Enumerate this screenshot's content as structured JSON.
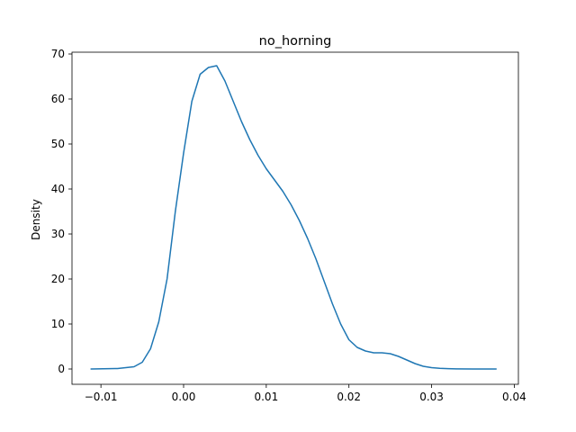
{
  "chart_data": {
    "type": "line",
    "title": "no_horning",
    "xlabel": "",
    "ylabel": "Density",
    "xlim": [
      -0.0135,
      0.0405
    ],
    "ylim": [
      -3.4,
      70.4
    ],
    "grid": false,
    "x_ticks": [
      -0.01,
      0.0,
      0.01,
      0.02,
      0.03,
      0.04
    ],
    "x_tick_labels": [
      "−0.01",
      "0.00",
      "0.01",
      "0.02",
      "0.03",
      "0.04"
    ],
    "y_ticks": [
      0,
      10,
      20,
      30,
      40,
      50,
      60,
      70
    ],
    "y_tick_labels": [
      "0",
      "10",
      "20",
      "30",
      "40",
      "50",
      "60",
      "70"
    ],
    "series": [
      {
        "color": "#1f77b4",
        "x": [
          -0.0112,
          -0.008,
          -0.006,
          -0.005,
          -0.004,
          -0.003,
          -0.002,
          -0.001,
          0.0,
          0.001,
          0.002,
          0.003,
          0.004,
          0.005,
          0.006,
          0.007,
          0.008,
          0.009,
          0.01,
          0.011,
          0.012,
          0.013,
          0.014,
          0.015,
          0.016,
          0.017,
          0.018,
          0.019,
          0.02,
          0.021,
          0.022,
          0.023,
          0.024,
          0.025,
          0.026,
          0.027,
          0.028,
          0.029,
          0.03,
          0.031,
          0.032,
          0.033,
          0.035,
          0.0378
        ],
        "y": [
          0.0,
          0.1,
          0.5,
          1.5,
          4.5,
          10.5,
          20.0,
          35.0,
          48.0,
          59.5,
          65.5,
          67.0,
          67.4,
          64.0,
          59.5,
          55.0,
          51.0,
          47.5,
          44.5,
          42.0,
          39.5,
          36.5,
          33.0,
          29.0,
          24.5,
          19.5,
          14.5,
          10.0,
          6.5,
          4.8,
          4.0,
          3.6,
          3.6,
          3.4,
          2.8,
          2.0,
          1.2,
          0.6,
          0.3,
          0.15,
          0.07,
          0.03,
          0.01,
          0.0
        ]
      }
    ]
  }
}
